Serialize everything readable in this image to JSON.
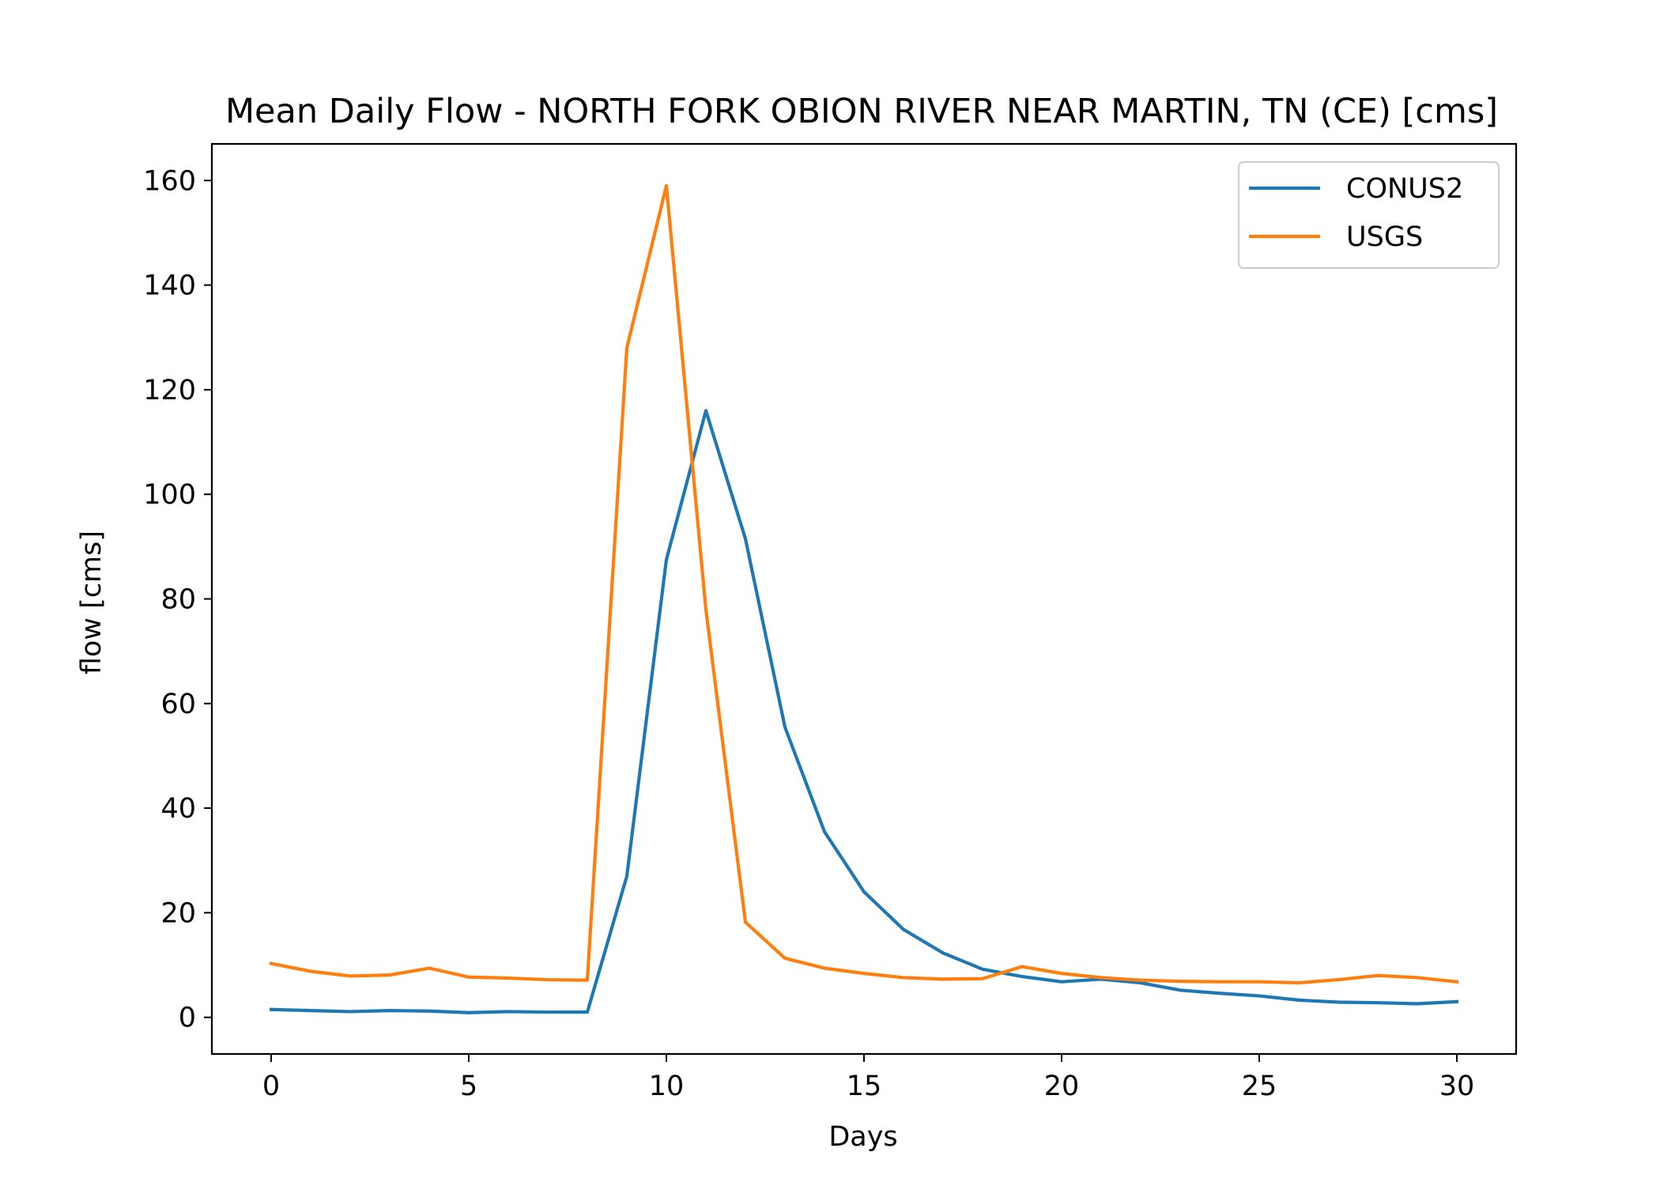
{
  "chart_data": {
    "type": "line",
    "title": "Mean Daily Flow - NORTH FORK OBION RIVER NEAR MARTIN, TN (CE) [cms]",
    "xlabel": "Days",
    "ylabel": "flow [cms]",
    "xlim": [
      -1.5,
      31.5
    ],
    "ylim": [
      -7,
      167
    ],
    "x_ticks": [
      0,
      5,
      10,
      15,
      20,
      25,
      30
    ],
    "x_tick_labels": [
      "0",
      "5",
      "10",
      "15",
      "20",
      "25",
      "30"
    ],
    "y_ticks": [
      0,
      20,
      40,
      60,
      80,
      100,
      120,
      140,
      160
    ],
    "y_tick_labels": [
      "0",
      "20",
      "40",
      "60",
      "80",
      "100",
      "120",
      "140",
      "160"
    ],
    "grid": false,
    "legend_position": "top-right",
    "x": [
      0,
      1,
      2,
      3,
      4,
      5,
      6,
      7,
      8,
      9,
      10,
      11,
      12,
      13,
      14,
      15,
      16,
      17,
      18,
      19,
      20,
      21,
      22,
      23,
      24,
      25,
      26,
      27,
      28,
      29,
      30
    ],
    "series": [
      {
        "name": "CONUS2",
        "color": "#1f77b4",
        "values": [
          1.5,
          1.3,
          1.1,
          1.3,
          1.2,
          0.9,
          1.1,
          1.0,
          1.0,
          27.0,
          87.5,
          116.0,
          91.5,
          55.5,
          35.5,
          24.0,
          16.8,
          12.3,
          9.2,
          7.8,
          6.8,
          7.3,
          6.6,
          5.2,
          4.6,
          4.1,
          3.3,
          2.9,
          2.8,
          2.6,
          3.0
        ]
      },
      {
        "name": "USGS",
        "color": "#ff7f0e",
        "values": [
          10.3,
          8.8,
          7.9,
          8.1,
          9.4,
          7.7,
          7.5,
          7.2,
          7.1,
          128.0,
          159.0,
          78.0,
          18.2,
          11.3,
          9.4,
          8.4,
          7.6,
          7.3,
          7.4,
          9.7,
          8.4,
          7.6,
          7.1,
          6.9,
          6.8,
          6.8,
          6.6,
          7.2,
          8.0,
          7.6,
          6.8
        ]
      }
    ]
  }
}
